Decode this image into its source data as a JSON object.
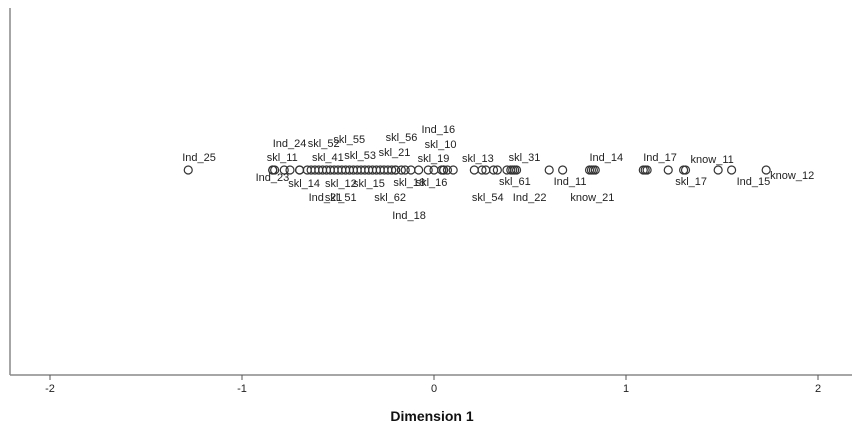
{
  "chart_data": {
    "type": "scatter",
    "title": "",
    "xlabel": "Dimension 1",
    "ylabel": "",
    "xlim": [
      -2.1,
      2.2
    ],
    "xticks": [
      -2,
      -1,
      0,
      1,
      2
    ],
    "xtick_labels": [
      "-2",
      "-1",
      "0",
      "1",
      "2"
    ],
    "grid": false,
    "legend": "none",
    "marker": "open-circle",
    "colors": {
      "marker": "#333333",
      "text": "#222222",
      "frame": "#999999"
    },
    "points": [
      {
        "x": -1.28,
        "y": 0,
        "label": "Ind_25"
      },
      {
        "x": -0.84,
        "y": 0,
        "label": "Ind_24"
      },
      {
        "x": -0.84,
        "y": 0,
        "label": "skl_11"
      },
      {
        "x": -0.83,
        "y": 0,
        "label": "Ind_23"
      },
      {
        "x": -0.78,
        "y": 0,
        "label": "skl_14"
      },
      {
        "x": -0.7,
        "y": 0,
        "label": "Ind_21"
      },
      {
        "x": -0.6,
        "y": 0,
        "label": "skl_52"
      },
      {
        "x": -0.62,
        "y": 0,
        "label": "skl_41"
      },
      {
        "x": -0.5,
        "y": 0,
        "label": "skl_12"
      },
      {
        "x": -0.48,
        "y": 0,
        "label": "skl_51"
      },
      {
        "x": -0.42,
        "y": 0,
        "label": "skl_55"
      },
      {
        "x": -0.4,
        "y": 0,
        "label": "skl_53"
      },
      {
        "x": -0.38,
        "y": 0,
        "label": "skl_15"
      },
      {
        "x": -0.28,
        "y": 0,
        "label": "skl_62"
      },
      {
        "x": -0.2,
        "y": 0,
        "label": "skl_56"
      },
      {
        "x": -0.2,
        "y": 0,
        "label": "skl_21"
      },
      {
        "x": -0.17,
        "y": 0,
        "label": "skl_18"
      },
      {
        "x": -0.15,
        "y": 0,
        "label": "Ind_18"
      },
      {
        "x": 0.07,
        "y": 0,
        "label": "Ind_16"
      },
      {
        "x": 0.04,
        "y": 0,
        "label": "skl_10"
      },
      {
        "x": 0.05,
        "y": 0,
        "label": "skl_19"
      },
      {
        "x": 0.05,
        "y": 0,
        "label": "skl_16"
      },
      {
        "x": 0.25,
        "y": 0,
        "label": "skl_13"
      },
      {
        "x": 0.27,
        "y": 0,
        "label": "skl_54"
      },
      {
        "x": 0.42,
        "y": 0,
        "label": "skl_31"
      },
      {
        "x": 0.38,
        "y": 0,
        "label": "skl_61"
      },
      {
        "x": 0.4,
        "y": 0,
        "label": "Ind_22"
      },
      {
        "x": 0.67,
        "y": 0,
        "label": "Ind_11"
      },
      {
        "x": 0.82,
        "y": 0,
        "label": "Ind_14"
      },
      {
        "x": 0.83,
        "y": 0,
        "label": "know_21"
      },
      {
        "x": 1.1,
        "y": 0,
        "label": "Ind_17"
      },
      {
        "x": 1.22,
        "y": 0,
        "label": "skl_17"
      },
      {
        "x": 1.31,
        "y": 0,
        "label": "know_11"
      },
      {
        "x": 1.55,
        "y": 0,
        "label": "Ind_15"
      },
      {
        "x": 1.73,
        "y": 0,
        "label": "know_12"
      }
    ],
    "extra_markers_x": [
      -0.75,
      -0.7,
      -0.66,
      -0.64,
      -0.58,
      -0.56,
      -0.54,
      -0.52,
      -0.46,
      -0.44,
      -0.36,
      -0.34,
      -0.32,
      -0.3,
      -0.26,
      -0.24,
      -0.22,
      -0.12,
      -0.08,
      -0.03,
      0.0,
      0.1,
      0.21,
      0.31,
      0.33,
      0.41,
      0.43,
      0.6,
      0.81,
      0.84,
      1.09,
      1.11,
      1.3,
      1.48
    ]
  }
}
